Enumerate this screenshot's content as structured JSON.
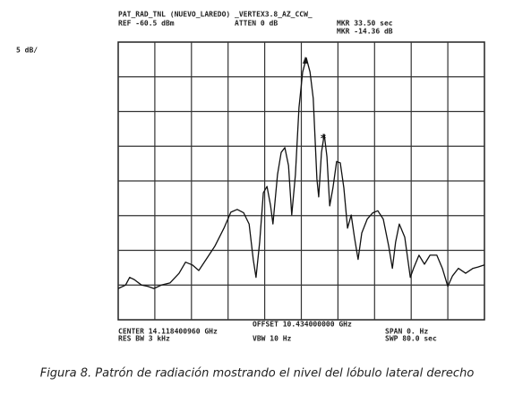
{
  "chart_data": {
    "type": "line",
    "title": "PAT_RAD_TNL (NUEVO_LAREDO) _VERTEX3.8_AZ_CCW_",
    "annotations": [
      "REF -60.5 dBm",
      "ATTEN 0 dB",
      "MKR 33.50 sec",
      "MKR -14.36 dB",
      "5 dB/",
      "OFFSET 10.434000000 GHz",
      "CENTER 14.118400960 GHz",
      "SPAN 0. Hz",
      "RES BW 3 kHz",
      "VBW 10 Hz",
      "SWP 80.0 sec"
    ],
    "caption": "Figura 8. Patrón de radiación mostrando el nivel del lóbulo lateral derecho",
    "x": [
      0.0,
      1.6,
      2.5,
      3.5,
      5.1,
      6.5,
      7.8,
      9.4,
      11.3,
      13.3,
      14.7,
      16.2,
      17.6,
      19.2,
      21.1,
      23.1,
      24.6,
      26.0,
      27.4,
      28.6,
      29.5,
      30.1,
      30.9,
      31.7,
      32.5,
      33.3,
      33.8,
      34.8,
      35.6,
      36.4,
      37.2,
      37.9,
      38.7,
      39.5,
      40.3,
      41.1,
      41.9,
      42.6,
      43.4,
      43.8,
      44.4,
      45.0,
      45.6,
      46.2,
      46.9,
      47.7,
      48.5,
      49.3,
      50.1,
      50.9,
      51.6,
      52.4,
      53.2,
      54.4,
      55.6,
      56.7,
      57.9,
      59.1,
      59.9,
      60.6,
      61.4,
      62.6,
      63.8,
      64.5,
      65.7,
      66.9,
      68.1,
      69.6,
      70.8,
      72.0,
      73.0,
      74.3,
      75.9,
      77.5,
      78.6,
      80.0
    ],
    "values": [
      -96.0,
      -95.5,
      -94.4,
      -94.7,
      -95.5,
      -95.7,
      -96.0,
      -95.5,
      -95.2,
      -93.8,
      -92.2,
      -92.6,
      -93.4,
      -91.8,
      -89.9,
      -87.3,
      -85.0,
      -84.6,
      -85.1,
      -86.7,
      -91.8,
      -94.4,
      -89.3,
      -82.2,
      -81.3,
      -84.1,
      -86.7,
      -79.6,
      -76.4,
      -75.7,
      -78.3,
      -85.4,
      -79.6,
      -69.9,
      -64.8,
      -62.8,
      -64.8,
      -68.6,
      -80.2,
      -82.8,
      -76.4,
      -73.8,
      -77.0,
      -84.1,
      -81.5,
      -77.7,
      -77.9,
      -81.5,
      -87.3,
      -85.4,
      -88.6,
      -91.8,
      -88.0,
      -86.0,
      -85.1,
      -84.8,
      -86.0,
      -89.9,
      -93.1,
      -89.3,
      -86.7,
      -88.6,
      -94.4,
      -93.1,
      -91.2,
      -92.5,
      -91.2,
      -91.2,
      -93.1,
      -95.7,
      -94.2,
      -93.1,
      -93.8,
      -93.1,
      -92.9,
      -92.6
    ],
    "color": "#111111",
    "xlim": [
      0,
      80
    ],
    "ylim": [
      -100.5,
      -60.5
    ],
    "grid": true
  }
}
